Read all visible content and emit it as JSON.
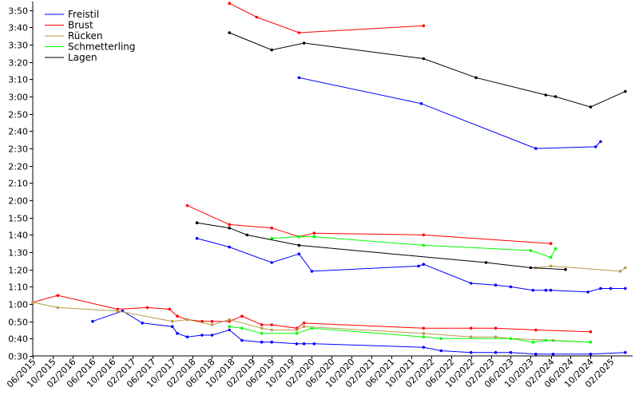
{
  "chart_data": {
    "type": "line",
    "title": "",
    "xlabel": "",
    "ylabel": "",
    "x_range": [
      "2015-06-01",
      "2025-06-15"
    ],
    "ylim": [
      "0:30",
      "3:55"
    ],
    "x_ticks": [
      "06/2015",
      "10/2015",
      "02/2016",
      "06/2016",
      "10/2016",
      "02/2017",
      "06/2017",
      "10/2017",
      "02/2018",
      "06/2018",
      "10/2018",
      "02/2019",
      "06/2019",
      "10/2019",
      "02/2020",
      "06/2020",
      "10/2020",
      "02/2021",
      "06/2021",
      "10/2021",
      "02/2022",
      "06/2022",
      "10/2022",
      "02/2023",
      "06/2023",
      "10/2023",
      "02/2024",
      "06/2024",
      "10/2024",
      "02/2025"
    ],
    "y_ticks": [
      "0:30",
      "0:40",
      "0:50",
      "1:00",
      "1:10",
      "1:20",
      "1:30",
      "1:40",
      "1:50",
      "2:00",
      "2:10",
      "2:20",
      "2:30",
      "2:40",
      "2:50",
      "3:00",
      "3:10",
      "3:20",
      "3:30",
      "3:40",
      "3:50"
    ],
    "grid": false,
    "legend_position": "top-left",
    "series": [
      {
        "name": "Freistil",
        "color": "#0000ff",
        "groups": [
          [
            [
              "2016-06-01",
              "0:50"
            ],
            [
              "2016-12-01",
              "0:56"
            ],
            [
              "2017-04-01",
              "0:49"
            ],
            [
              "2017-10-01",
              "0:47"
            ],
            [
              "2017-11-01",
              "0:43"
            ],
            [
              "2018-01-01",
              "0:41"
            ],
            [
              "2018-04-01",
              "0:42"
            ],
            [
              "2018-06-01",
              "0:42"
            ],
            [
              "2018-09-15",
              "0:45"
            ],
            [
              "2018-12-01",
              "0:39"
            ],
            [
              "2019-04-01",
              "0:38"
            ],
            [
              "2019-06-01",
              "0:38"
            ],
            [
              "2019-11-01",
              "0:37"
            ],
            [
              "2019-12-15",
              "0:37"
            ],
            [
              "2020-02-15",
              "0:37"
            ],
            [
              "2021-12-15",
              "0:35"
            ],
            [
              "2022-04-01",
              "0:33"
            ],
            [
              "2022-10-01",
              "0:32"
            ],
            [
              "2023-03-01",
              "0:32"
            ],
            [
              "2023-06-01",
              "0:32"
            ],
            [
              "2023-11-01",
              "0:31"
            ],
            [
              "2024-02-15",
              "0:31"
            ],
            [
              "2024-10-01",
              "0:31"
            ],
            [
              "2025-05-01",
              "0:32"
            ]
          ],
          [
            [
              "2018-03-01",
              "1:38"
            ],
            [
              "2018-09-15",
              "1:33"
            ],
            [
              "2019-06-01",
              "1:24"
            ],
            [
              "2019-11-15",
              "1:29"
            ],
            [
              "2020-02-01",
              "1:19"
            ],
            [
              "2021-11-15",
              "1:22"
            ],
            [
              "2021-12-15",
              "1:23"
            ],
            [
              "2022-10-01",
              "1:12"
            ],
            [
              "2023-03-01",
              "1:11"
            ],
            [
              "2023-06-01",
              "1:10"
            ],
            [
              "2023-10-15",
              "1:08"
            ],
            [
              "2024-01-01",
              "1:08"
            ],
            [
              "2024-02-01",
              "1:08"
            ],
            [
              "2024-09-15",
              "1:07"
            ],
            [
              "2024-12-01",
              "1:09"
            ],
            [
              "2025-02-01",
              "1:09"
            ],
            [
              "2025-05-01",
              "1:09"
            ]
          ],
          [
            [
              "2019-11-15",
              "3:11"
            ],
            [
              "2021-12-01",
              "2:56"
            ],
            [
              "2023-11-01",
              "2:30"
            ],
            [
              "2024-11-01",
              "2:31"
            ],
            [
              "2024-12-01",
              "2:34"
            ]
          ]
        ]
      },
      {
        "name": "Brust",
        "color": "#ff0000",
        "groups": [
          [
            [
              "2015-06-01",
              "1:01"
            ],
            [
              "2015-11-01",
              "1:05"
            ],
            [
              "2016-11-01",
              "0:57"
            ],
            [
              "2017-05-01",
              "0:58"
            ],
            [
              "2017-09-15",
              "0:57"
            ],
            [
              "2017-11-01",
              "0:53"
            ],
            [
              "2018-01-01",
              "0:51"
            ],
            [
              "2018-04-01",
              "0:50"
            ],
            [
              "2018-06-01",
              "0:50"
            ],
            [
              "2018-09-15",
              "0:50"
            ],
            [
              "2018-12-01",
              "0:53"
            ],
            [
              "2019-04-01",
              "0:48"
            ],
            [
              "2019-06-01",
              "0:48"
            ],
            [
              "2019-11-01",
              "0:46"
            ],
            [
              "2019-12-15",
              "0:49"
            ],
            [
              "2021-12-15",
              "0:46"
            ],
            [
              "2022-10-01",
              "0:46"
            ],
            [
              "2023-03-01",
              "0:46"
            ],
            [
              "2023-11-01",
              "0:45"
            ],
            [
              "2024-10-01",
              "0:44"
            ]
          ],
          [
            [
              "2018-01-01",
              "1:57"
            ],
            [
              "2018-09-15",
              "1:46"
            ],
            [
              "2019-06-01",
              "1:44"
            ],
            [
              "2019-11-15",
              "1:39"
            ],
            [
              "2020-02-15",
              "1:41"
            ],
            [
              "2021-12-15",
              "1:40"
            ],
            [
              "2024-02-01",
              "1:35"
            ]
          ],
          [
            [
              "2018-09-15",
              "3:54"
            ],
            [
              "2019-03-01",
              "3:46"
            ],
            [
              "2019-11-15",
              "3:37"
            ],
            [
              "2021-12-15",
              "3:41"
            ]
          ]
        ]
      },
      {
        "name": "Rücken",
        "color": "#b59b4a",
        "groups": [
          [
            [
              "2015-06-01",
              "1:01"
            ],
            [
              "2015-11-01",
              "0:58"
            ],
            [
              "2016-11-01",
              "0:56"
            ],
            [
              "2017-10-01",
              "0:50"
            ],
            [
              "2018-01-01",
              "0:51"
            ],
            [
              "2018-06-01",
              "0:48"
            ],
            [
              "2018-09-15",
              "0:51"
            ],
            [
              "2019-04-01",
              "0:46"
            ],
            [
              "2019-06-01",
              "0:45"
            ],
            [
              "2019-11-01",
              "0:45"
            ],
            [
              "2019-12-15",
              "0:47"
            ],
            [
              "2021-12-15",
              "0:43"
            ],
            [
              "2022-10-01",
              "0:41"
            ],
            [
              "2023-03-01",
              "0:41"
            ],
            [
              "2023-06-01",
              "0:40"
            ],
            [
              "2024-02-15",
              "0:39"
            ],
            [
              "2024-10-01",
              "0:38"
            ]
          ],
          [
            [
              "2023-11-01",
              "1:21"
            ],
            [
              "2024-02-01",
              "1:22"
            ],
            [
              "2025-04-01",
              "1:19"
            ],
            [
              "2025-05-01",
              "1:21"
            ]
          ]
        ]
      },
      {
        "name": "Schmetterling",
        "color": "#00ff00",
        "groups": [
          [
            [
              "2018-09-15",
              "0:47"
            ],
            [
              "2018-12-01",
              "0:46"
            ],
            [
              "2019-04-01",
              "0:43"
            ],
            [
              "2019-11-01",
              "0:43"
            ],
            [
              "2020-02-01",
              "0:46"
            ],
            [
              "2021-12-15",
              "0:41"
            ],
            [
              "2022-04-01",
              "0:40"
            ],
            [
              "2023-06-01",
              "0:40"
            ],
            [
              "2023-10-15",
              "0:38"
            ],
            [
              "2024-01-01",
              "0:39"
            ],
            [
              "2024-10-01",
              "0:38"
            ]
          ],
          [
            [
              "2019-06-01",
              "1:38"
            ],
            [
              "2019-11-15",
              "1:39"
            ],
            [
              "2020-02-15",
              "1:39"
            ],
            [
              "2021-12-15",
              "1:34"
            ],
            [
              "2023-10-01",
              "1:31"
            ],
            [
              "2024-02-01",
              "1:27"
            ],
            [
              "2024-03-01",
              "1:32"
            ]
          ]
        ]
      },
      {
        "name": "Lagen",
        "color": "#000000",
        "groups": [
          [
            [
              "2018-03-01",
              "1:47"
            ],
            [
              "2018-09-15",
              "1:44"
            ],
            [
              "2019-01-01",
              "1:40"
            ],
            [
              "2019-11-15",
              "1:34"
            ],
            [
              "2023-01-01",
              "1:24"
            ],
            [
              "2023-10-01",
              "1:21"
            ],
            [
              "2024-05-01",
              "1:20"
            ]
          ],
          [
            [
              "2018-09-15",
              "3:37"
            ],
            [
              "2019-06-01",
              "3:27"
            ],
            [
              "2019-12-15",
              "3:31"
            ],
            [
              "2021-12-15",
              "3:22"
            ],
            [
              "2022-11-01",
              "3:11"
            ],
            [
              "2024-01-01",
              "3:01"
            ],
            [
              "2024-03-01",
              "3:00"
            ],
            [
              "2024-10-01",
              "2:54"
            ],
            [
              "2025-05-01",
              "3:03"
            ]
          ]
        ]
      }
    ]
  }
}
